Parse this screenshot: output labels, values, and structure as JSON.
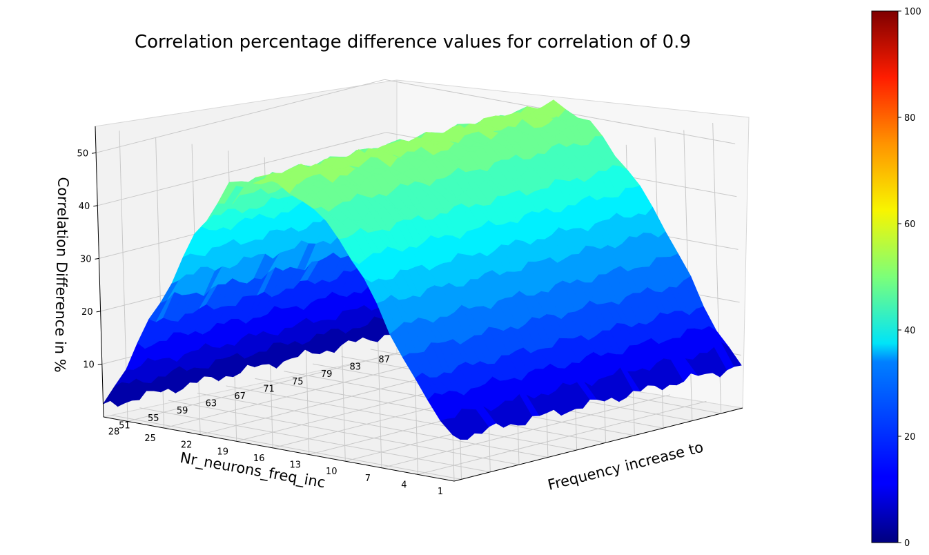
{
  "chart_data": {
    "type": "surface3d",
    "title": "Correlation percentage difference values for correlation of 0.9",
    "xlabel": "Nr_neurons_freq_inc",
    "ylabel": "Frequency increase to",
    "zlabel": "Correlation Difference in %",
    "x_ticks": [
      "28",
      "25",
      "22",
      "19",
      "16",
      "13",
      "10",
      "7",
      "4",
      "1"
    ],
    "y_ticks": [
      "51",
      "55",
      "59",
      "63",
      "67",
      "71",
      "75",
      "79",
      "83",
      "87"
    ],
    "z_ticks": [
      "10",
      "20",
      "30",
      "40",
      "50"
    ],
    "x_range": [
      1,
      30
    ],
    "y_range": [
      50,
      90
    ],
    "z_range": [
      0,
      55
    ],
    "surface_shape": "ridge peaking near x=16 with value about 50, falling to about 2 at x=30 and about 8 at x=1; nearly constant along the frequency axis",
    "ridge_profile": {
      "x": [
        1,
        4,
        7,
        10,
        13,
        16,
        19,
        22,
        25,
        28,
        30
      ],
      "z": [
        8,
        18,
        31,
        42,
        49,
        51,
        48,
        38,
        24,
        10,
        2
      ]
    },
    "colorbar": {
      "colormap": "jet",
      "range": [
        0,
        100
      ],
      "ticks": [
        "0",
        "20",
        "40",
        "60",
        "80",
        "100"
      ]
    }
  }
}
